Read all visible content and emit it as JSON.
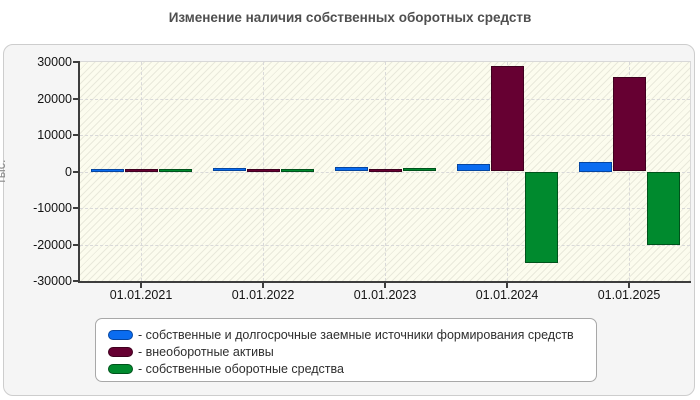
{
  "title": "Изменение наличия собственных оборотных средств",
  "chart_data": {
    "type": "bar",
    "categories": [
      "01.01.2021",
      "01.01.2022",
      "01.01.2023",
      "01.01.2024",
      "01.01.2025"
    ],
    "series": [
      {
        "name": "собственные и долгосрочные заемные источники формирования средств",
        "color": "#0a6cf0",
        "border_color": "#0646a0",
        "values": [
          600,
          900,
          1100,
          2000,
          2500
        ]
      },
      {
        "name": "внеоборотные активы",
        "color": "#660032",
        "border_color": "#3f001f",
        "values": [
          500,
          500,
          500,
          29000,
          26000
        ]
      },
      {
        "name": "собственные оборотные средства",
        "color": "#008a2e",
        "border_color": "#00521b",
        "values": [
          400,
          700,
          900,
          -25000,
          -20000
        ]
      }
    ],
    "ylabel": "тыс.",
    "ylim": [
      -30000,
      30000
    ],
    "ytick_step": 10000,
    "yticks": [
      "30000",
      "20000",
      "10000",
      "0",
      "-10000",
      "-20000",
      "-30000"
    ],
    "grid": true,
    "legend_position": "bottom"
  },
  "legend": {
    "items": [
      {
        "label": "- собственные и долгосрочные заемные источники формирования средств"
      },
      {
        "label": "- внеоборотные активы"
      },
      {
        "label": "- собственные оборотные средства"
      }
    ]
  }
}
